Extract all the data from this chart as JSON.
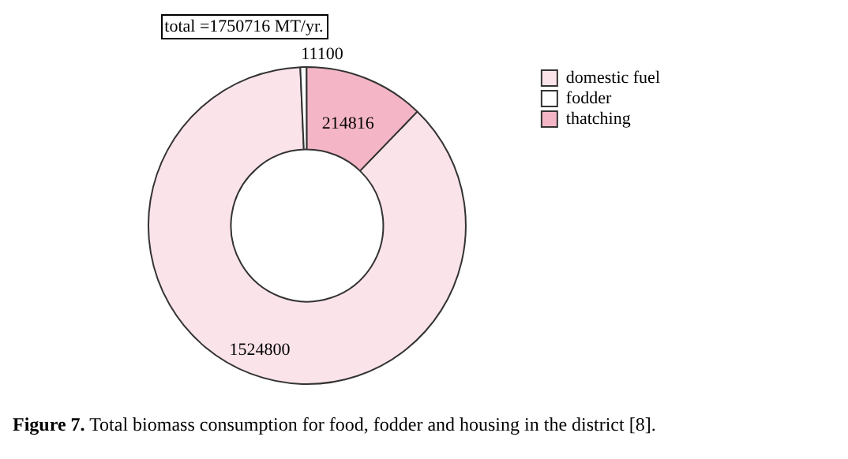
{
  "chart_data": {
    "type": "donut",
    "categories": [
      "domestic fuel",
      "fodder",
      "thatching"
    ],
    "values": [
      1524800,
      11100,
      214816
    ],
    "colors": [
      "#fbe3ea",
      "#ffffff",
      "#f4b6c6"
    ],
    "data_labels": true,
    "legend": "top right",
    "annotations": [
      "total =1750716 MT/yr.",
      "Figure 7. Total biomass consumption for food, fodder and housing in the district [8]."
    ]
  }
}
